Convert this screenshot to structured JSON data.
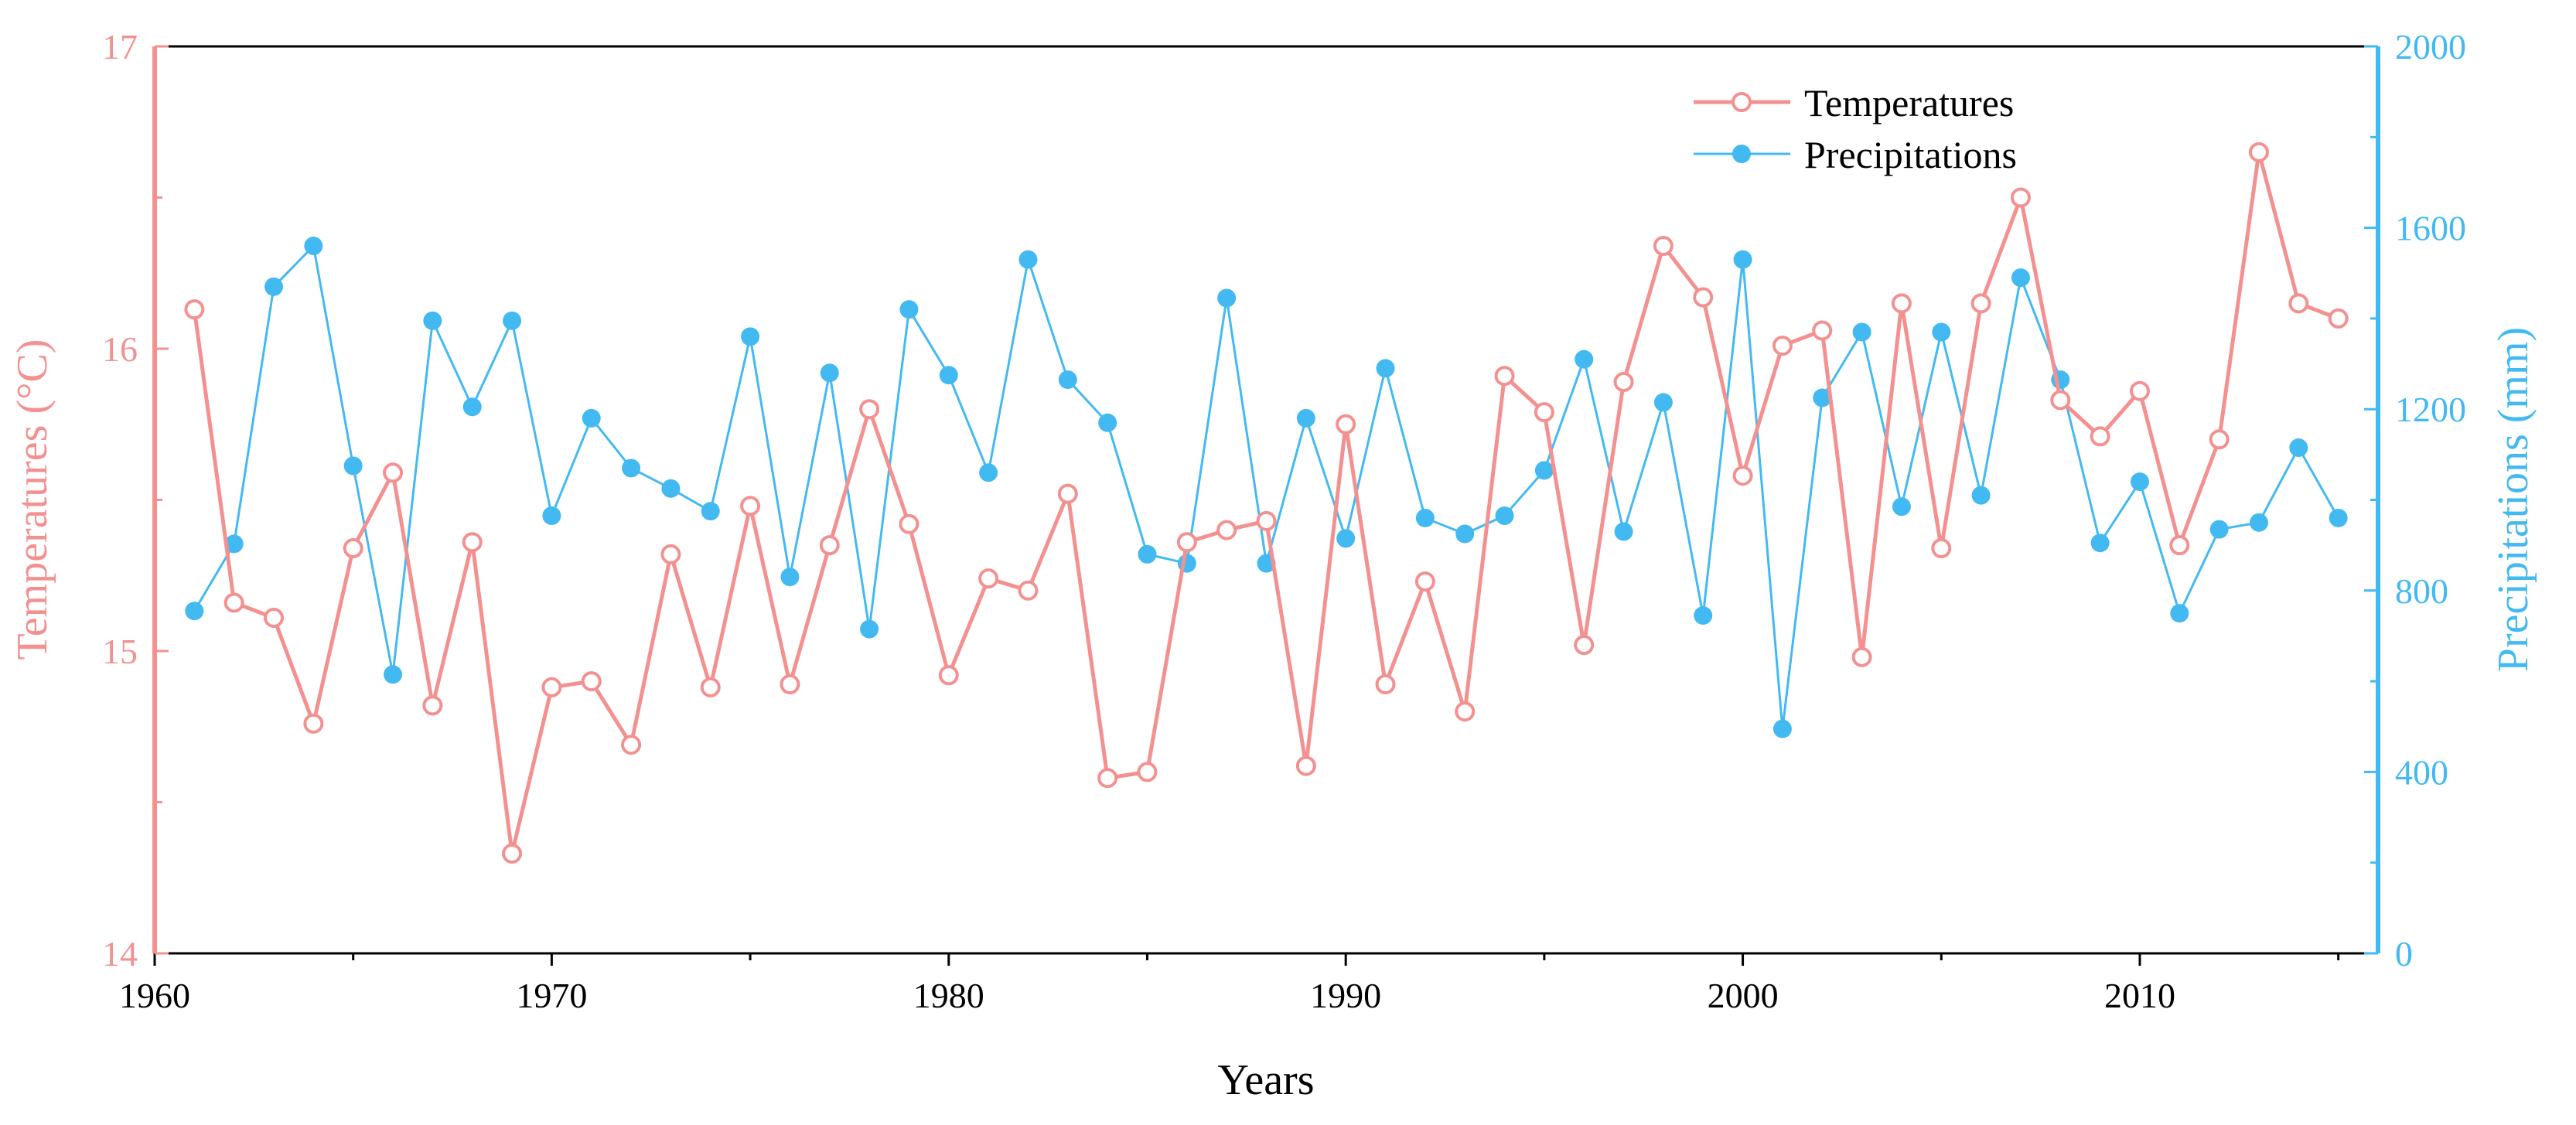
{
  "chart_data": {
    "type": "line",
    "title": "",
    "xlabel": "Years",
    "ylabel_left": "Temperatures (°C)",
    "ylabel_right": "Precipitations (mm)",
    "xlim": [
      1960,
      2016
    ],
    "ylim_left": [
      14,
      17
    ],
    "ylim_right": [
      0,
      2000
    ],
    "x_ticks": [
      1960,
      1970,
      1980,
      1990,
      2000,
      2010
    ],
    "y_left_ticks": [
      14,
      15,
      16,
      17
    ],
    "y_right_ticks": [
      0,
      400,
      800,
      1200,
      1600,
      2000
    ],
    "grid": false,
    "legend_position": "top-right",
    "colors": {
      "temperature": "#f39191",
      "precipitation": "#43b9f2"
    },
    "x": [
      1961,
      1962,
      1963,
      1964,
      1965,
      1966,
      1967,
      1968,
      1969,
      1970,
      1971,
      1972,
      1973,
      1974,
      1975,
      1976,
      1977,
      1978,
      1979,
      1980,
      1981,
      1982,
      1983,
      1984,
      1985,
      1986,
      1987,
      1988,
      1989,
      1990,
      1991,
      1992,
      1993,
      1994,
      1995,
      1996,
      1997,
      1998,
      1999,
      2000,
      2001,
      2002,
      2003,
      2004,
      2005,
      2006,
      2007,
      2008,
      2009,
      2010,
      2011,
      2012,
      2013,
      2014,
      2015
    ],
    "series": [
      {
        "name": "Temperatures",
        "axis": "left",
        "marker": "open-circle",
        "values": [
          16.13,
          15.16,
          15.11,
          14.76,
          15.34,
          15.59,
          14.82,
          15.36,
          14.33,
          14.88,
          14.9,
          14.69,
          15.32,
          14.88,
          15.48,
          14.89,
          15.35,
          15.8,
          15.42,
          14.92,
          15.24,
          15.2,
          15.52,
          14.58,
          14.6,
          15.36,
          15.4,
          15.43,
          14.62,
          15.75,
          14.89,
          15.23,
          14.8,
          15.91,
          15.79,
          15.02,
          15.89,
          16.34,
          16.17,
          15.58,
          16.01,
          16.06,
          14.98,
          16.15,
          15.34,
          16.15,
          16.5,
          15.83,
          15.71,
          15.86,
          15.35,
          15.7,
          16.65,
          16.15,
          16.1
        ]
      },
      {
        "name": "Precipitations",
        "axis": "right",
        "marker": "filled-circle",
        "values": [
          755,
          903,
          1470,
          1560,
          1075,
          615,
          1395,
          1205,
          1395,
          965,
          1180,
          1070,
          1025,
          975,
          1360,
          830,
          1280,
          715,
          1420,
          1275,
          1060,
          1530,
          1265,
          1170,
          880,
          860,
          1445,
          860,
          1180,
          915,
          1290,
          960,
          925,
          965,
          1065,
          1310,
          930,
          1215,
          745,
          1530,
          495,
          1225,
          1370,
          985,
          1370,
          1010,
          1490,
          1265,
          905,
          1040,
          750,
          935,
          950,
          1115,
          960
        ]
      }
    ]
  }
}
